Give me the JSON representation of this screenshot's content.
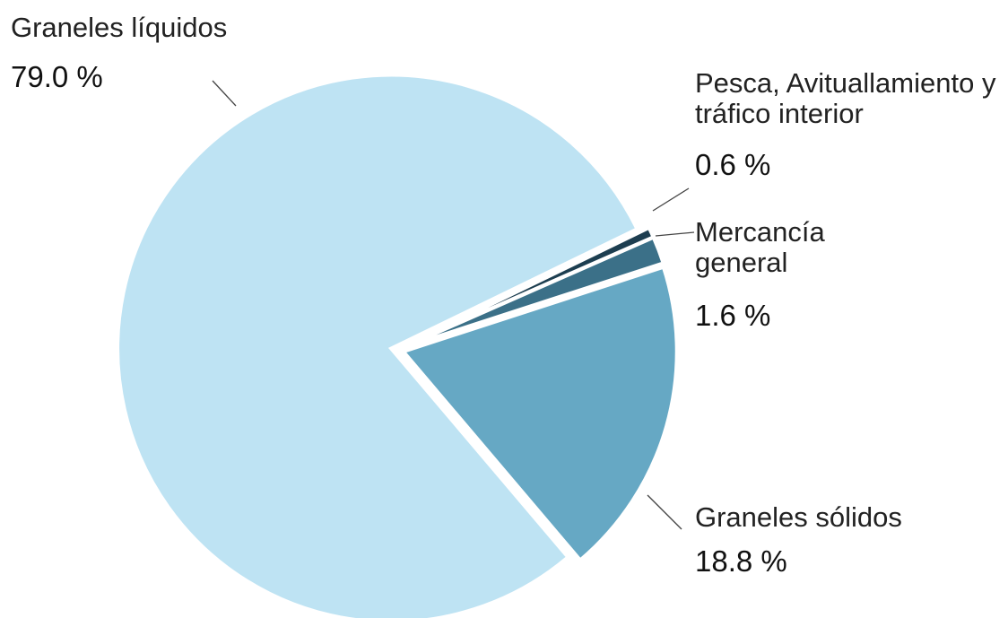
{
  "chart_data": {
    "type": "pie",
    "categories": [
      "Graneles líquidos",
      "Graneles sólidos",
      "Mercancía general",
      "Pesca, Avituallamiento y tráfico interior"
    ],
    "values": [
      79.0,
      18.8,
      1.6,
      0.6
    ],
    "value_labels": [
      "79.0 %",
      "18.8 %",
      "1.6 %",
      "0.6 %"
    ],
    "colors": [
      "#bee3f3",
      "#66a8c4",
      "#3b7088",
      "#1d3e50"
    ]
  }
}
